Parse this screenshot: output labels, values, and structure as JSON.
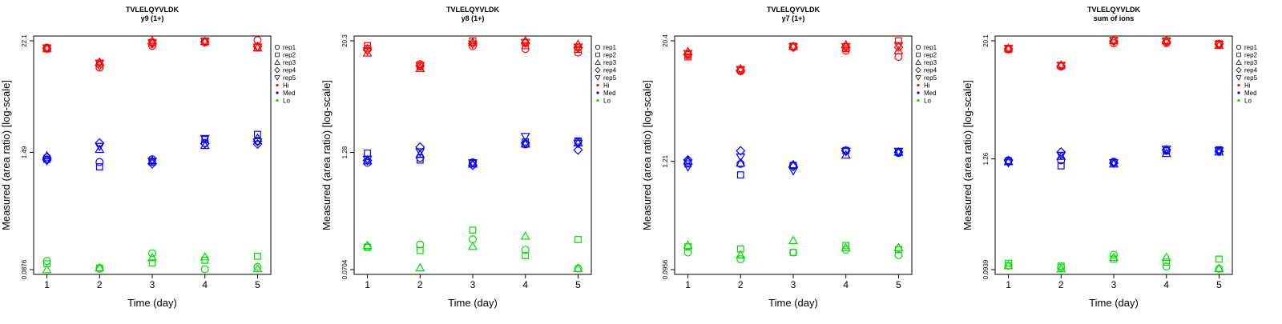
{
  "chart_data": [
    {
      "type": "scatter",
      "title": "TVLELQYVLDK",
      "subtitle": "y9 (1+)",
      "xlabel": "Time (day)",
      "ylabel": "Measured (area ratio) [log-scale]",
      "y_scale": "log",
      "ylim": [
        0.0876,
        22.1
      ],
      "yticks": [
        "0.0876",
        "1.49",
        "22.1"
      ],
      "ytick_values": [
        0.0876,
        1.49,
        22.1
      ],
      "categories": [
        1,
        2,
        3,
        4,
        5
      ],
      "legend_position": "right",
      "legend": {
        "replicates": [
          {
            "name": "rep1",
            "marker": "circle"
          },
          {
            "name": "rep2",
            "marker": "square"
          },
          {
            "name": "rep3",
            "marker": "triangle-up"
          },
          {
            "name": "rep4",
            "marker": "diamond"
          },
          {
            "name": "rep5",
            "marker": "triangle-down"
          }
        ],
        "levels": [
          {
            "name": "Hi",
            "color": "#ff0000"
          },
          {
            "name": "Med",
            "color": "#0000ff"
          },
          {
            "name": "Lo",
            "color": "#00dd00"
          }
        ]
      },
      "series": [
        {
          "name": "Hi",
          "color": "#ff0000",
          "points": {
            "1": [
              18.8,
              18.2,
              18.5,
              18.3,
              18.6
            ],
            "2": [
              11.6,
              12.6,
              13.2,
              12.2,
              12.9
            ],
            "3": [
              19.6,
              21.3,
              22.1,
              20.6,
              21.0
            ],
            "4": [
              21.3,
              22.0,
              21.7,
              21.4,
              21.8
            ],
            "5": [
              22.5,
              18.8,
              18.6,
              19.3,
              19.0
            ]
          }
        },
        {
          "name": "Med",
          "color": "#0000ff",
          "points": {
            "1": [
              1.32,
              1.26,
              1.37,
              1.24,
              1.22
            ],
            "2": [
              1.18,
              1.05,
              1.6,
              1.87,
              1.72
            ],
            "3": [
              1.26,
              1.18,
              1.22,
              1.13,
              1.2
            ],
            "4": [
              1.87,
              2.03,
              1.76,
              1.84,
              2.08
            ],
            "5": [
              1.96,
              2.3,
              2.1,
              1.82,
              1.92
            ]
          }
        },
        {
          "name": "Lo",
          "color": "#00dd00",
          "points": {
            "1": [
              0.108,
              0.101,
              0.0876,
              null,
              null
            ],
            "2": [
              0.0895,
              0.091,
              0.0915,
              null,
              null
            ],
            "3": [
              0.13,
              0.103,
              0.117,
              null,
              null
            ],
            "4": [
              0.0885,
              0.11,
              0.119,
              null,
              null
            ],
            "5": [
              0.0935,
              0.121,
              0.0895,
              null,
              null
            ]
          }
        }
      ]
    },
    {
      "type": "scatter",
      "title": "TVLELQYVLDK",
      "subtitle": "y8 (1+)",
      "xlabel": "Time (day)",
      "ylabel": "Measured (area ratio) [log-scale]",
      "y_scale": "log",
      "ylim": [
        0.0704,
        20.3
      ],
      "yticks": [
        "0.0704",
        "1.28",
        "20.3"
      ],
      "ytick_values": [
        0.0704,
        1.28,
        20.3
      ],
      "categories": [
        1,
        2,
        3,
        4,
        5
      ],
      "legend_position": "right",
      "legend": {
        "replicates": [
          {
            "name": "rep1",
            "marker": "circle"
          },
          {
            "name": "rep2",
            "marker": "square"
          },
          {
            "name": "rep3",
            "marker": "triangle-up"
          },
          {
            "name": "rep4",
            "marker": "diamond"
          },
          {
            "name": "rep5",
            "marker": "triangle-down"
          }
        ],
        "levels": [
          {
            "name": "Hi",
            "color": "#ff0000"
          },
          {
            "name": "Med",
            "color": "#0000ff"
          },
          {
            "name": "Lo",
            "color": "#00dd00"
          }
        ]
      },
      "series": [
        {
          "name": "Hi",
          "color": "#ff0000",
          "points": {
            "1": [
              16.8,
              18.0,
              15.0,
              16.2,
              15.8
            ],
            "2": [
              11.4,
              10.6,
              10.2,
              10.9,
              11.0
            ],
            "3": [
              17.8,
              20.3,
              19.6,
              19.0,
              18.7
            ],
            "4": [
              16.6,
              18.0,
              20.3,
              19.2,
              19.5
            ],
            "5": [
              15.2,
              16.4,
              18.6,
              17.0,
              17.4
            ]
          }
        },
        {
          "name": "Med",
          "color": "#0000ff",
          "points": {
            "1": [
              0.99,
              1.26,
              1.04,
              1.05,
              1.08
            ],
            "2": [
              1.12,
              1.06,
              1.22,
              1.46,
              1.3
            ],
            "3": [
              1.0,
              0.97,
              0.96,
              0.93,
              0.99
            ],
            "4": [
              1.56,
              1.66,
              1.58,
              1.62,
              1.9
            ],
            "5": [
              1.66,
              1.7,
              1.62,
              1.36,
              1.6
            ]
          }
        },
        {
          "name": "Lo",
          "color": "#00dd00",
          "points": {
            "1": [
              0.124,
              0.122,
              0.128,
              null,
              null
            ],
            "2": [
              0.131,
              0.113,
              0.0735,
              null,
              null
            ],
            "3": [
              0.149,
              0.187,
              0.125,
              null,
              null
            ],
            "4": [
              0.115,
              0.0995,
              0.161,
              null,
              null
            ],
            "5": [
              0.0725,
              0.148,
              0.0725,
              null,
              null
            ]
          }
        }
      ]
    },
    {
      "type": "scatter",
      "title": "TVLELQYVLDK",
      "subtitle": "y7 (1+)",
      "xlabel": "Time (day)",
      "ylabel": "Measured (area ratio) [log-scale]",
      "y_scale": "log",
      "ylim": [
        0.0956,
        20.4
      ],
      "yticks": [
        "0.0956",
        "1.21",
        "20.4"
      ],
      "ytick_values": [
        0.0956,
        1.21,
        20.4
      ],
      "categories": [
        1,
        2,
        3,
        4,
        5
      ],
      "legend_position": "right",
      "legend": {
        "replicates": [
          {
            "name": "rep1",
            "marker": "circle"
          },
          {
            "name": "rep2",
            "marker": "square"
          },
          {
            "name": "rep3",
            "marker": "triangle-up"
          },
          {
            "name": "rep4",
            "marker": "diamond"
          },
          {
            "name": "rep5",
            "marker": "triangle-down"
          }
        ],
        "levels": [
          {
            "name": "Hi",
            "color": "#ff0000"
          },
          {
            "name": "Med",
            "color": "#0000ff"
          },
          {
            "name": "Lo",
            "color": "#00dd00"
          }
        ]
      },
      "series": [
        {
          "name": "Hi",
          "color": "#ff0000",
          "points": {
            "1": [
              14.6,
              14.0,
              15.8,
              14.9,
              15.1
            ],
            "2": [
              10.0,
              10.3,
              10.6,
              10.2,
              10.4
            ],
            "3": [
              17.6,
              18.0,
              17.9,
              17.5,
              17.7
            ],
            "4": [
              16.2,
              17.0,
              18.6,
              17.5,
              17.8
            ],
            "5": [
              14.0,
              20.4,
              16.2,
              17.5,
              18.2
            ]
          }
        },
        {
          "name": "Med",
          "color": "#0000ff",
          "points": {
            "1": [
              1.18,
              1.14,
              1.22,
              1.25,
              1.06
            ],
            "2": [
              1.14,
              0.88,
              1.16,
              1.55,
              1.34
            ],
            "3": [
              1.1,
              1.1,
              1.12,
              1.07,
              0.97
            ],
            "4": [
              1.56,
              1.56,
              1.4,
              1.55,
              1.52
            ],
            "5": [
              1.47,
              1.52,
              1.5,
              1.5,
              1.53
            ]
          }
        },
        {
          "name": "Lo",
          "color": "#00dd00",
          "points": {
            "1": [
              0.143,
              0.163,
              0.169,
              null,
              null
            ],
            "2": [
              0.122,
              0.155,
              0.135,
              null,
              null
            ],
            "3": [
              0.143,
              0.143,
              0.189,
              null,
              null
            ],
            "4": [
              0.152,
              0.168,
              0.16,
              null,
              null
            ],
            "5": [
              0.134,
              0.153,
              0.16,
              null,
              null
            ]
          }
        }
      ]
    },
    {
      "type": "scatter",
      "title": "TVLELQYVLDK",
      "subtitle": "sum of ions",
      "xlabel": "Time (day)",
      "ylabel": "Measured (area ratio) [log-scale]",
      "y_scale": "log",
      "ylim": [
        0.0939,
        20.1
      ],
      "yticks": [
        "0.0939",
        "1.26",
        "20.1"
      ],
      "ytick_values": [
        0.0939,
        1.26,
        20.1
      ],
      "categories": [
        1,
        2,
        3,
        4,
        5
      ],
      "legend_position": "right",
      "legend": {
        "replicates": [
          {
            "name": "rep1",
            "marker": "circle"
          },
          {
            "name": "rep2",
            "marker": "square"
          },
          {
            "name": "rep3",
            "marker": "triangle-up"
          },
          {
            "name": "rep4",
            "marker": "diamond"
          },
          {
            "name": "rep5",
            "marker": "triangle-down"
          }
        ],
        "levels": [
          {
            "name": "Hi",
            "color": "#ff0000"
          },
          {
            "name": "Med",
            "color": "#0000ff"
          },
          {
            "name": "Lo",
            "color": "#00dd00"
          }
        ]
      },
      "series": [
        {
          "name": "Hi",
          "color": "#ff0000",
          "points": {
            "1": [
              16.7,
              16.4,
              16.9,
              16.6,
              16.8
            ],
            "2": [
              11.0,
              11.2,
              11.4,
              11.1,
              11.3
            ],
            "3": [
              19.0,
              20.3,
              20.4,
              19.9,
              20.2
            ],
            "4": [
              19.0,
              20.1,
              20.3,
              19.6,
              19.9
            ],
            "5": [
              18.4,
              18.8,
              18.1,
              18.6,
              18.5
            ]
          }
        },
        {
          "name": "Med",
          "color": "#0000ff",
          "points": {
            "1": [
              1.22,
              1.2,
              1.18,
              1.21,
              1.15
            ],
            "2": [
              1.22,
              1.07,
              1.34,
              1.48,
              1.37
            ],
            "3": [
              1.18,
              1.16,
              1.12,
              1.14,
              1.15
            ],
            "4": [
              1.52,
              1.52,
              1.43,
              1.56,
              1.58
            ],
            "5": [
              1.54,
              1.56,
              1.48,
              1.5,
              1.52
            ]
          }
        },
        {
          "name": "Lo",
          "color": "#00dd00",
          "points": {
            "1": [
              0.103,
              0.109,
              0.103,
              null,
              null
            ],
            "2": [
              0.0985,
              0.102,
              0.0955,
              null,
              null
            ],
            "3": [
              0.133,
              0.12,
              0.125,
              null,
              null
            ],
            "4": [
              0.101,
              0.112,
              0.125,
              null,
              null
            ],
            "5": [
              0.0955,
              0.12,
              0.0965,
              null,
              null
            ]
          }
        }
      ]
    }
  ]
}
